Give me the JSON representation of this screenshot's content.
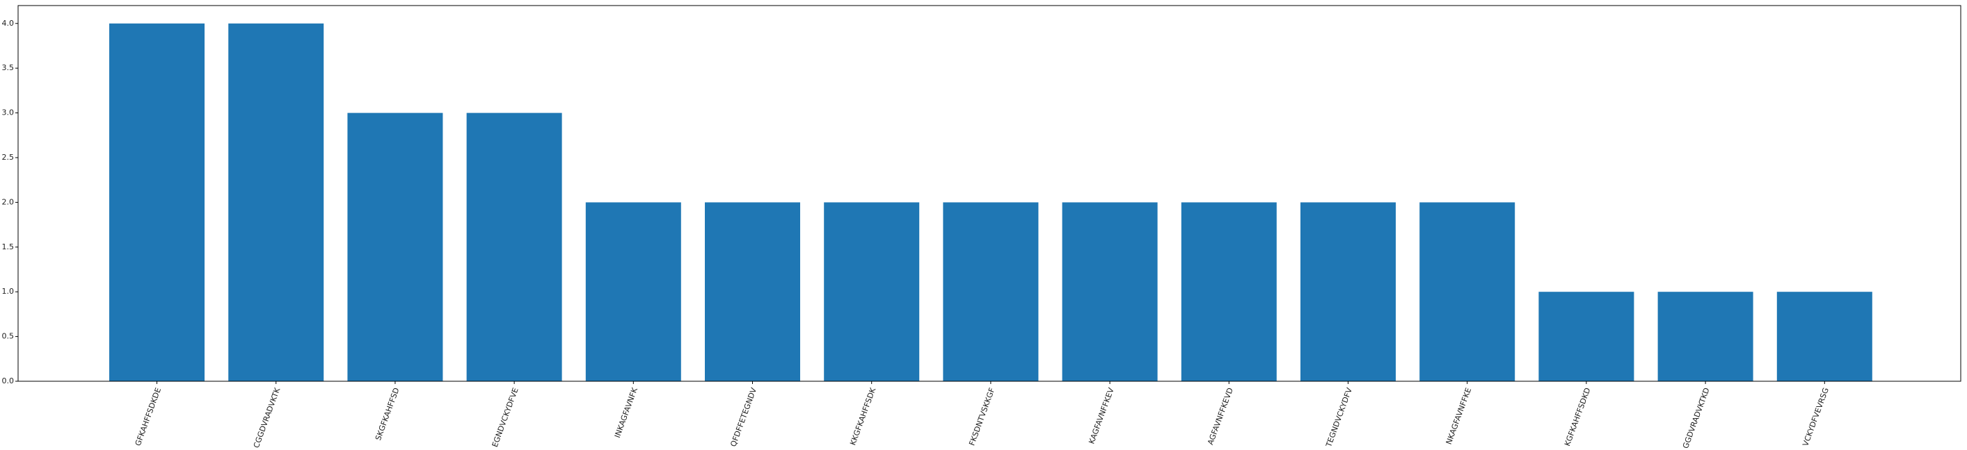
{
  "chart_data": {
    "type": "bar",
    "categories": [
      "GFKAHFFSDKDE",
      "CGGDVRADVKTK",
      "SKGFKAHFFSD",
      "EGNDVCKYDFVE",
      "INKAGFAVNFK",
      "QFDFFETEGNDV",
      "KKGFKAHFFSDK",
      "FKSDNTVSKKGF",
      "KAGFAVNFFKEV",
      "AGFAVNFFKEVD",
      "TEGNDVCKYDFV",
      "NKAGFAVNFFKE",
      "KGFKAHFFSDKD",
      "GGDVRADVKTKD",
      "VCKYDFVEVRSG"
    ],
    "values": [
      4,
      4,
      3,
      3,
      2,
      2,
      2,
      2,
      2,
      2,
      2,
      2,
      1,
      1,
      1
    ],
    "title": "",
    "xlabel": "",
    "ylabel": "",
    "ylim": [
      0,
      4.2
    ],
    "yticks": [
      "0.0",
      "0.5",
      "1.0",
      "1.5",
      "2.0",
      "2.5",
      "3.0",
      "3.5",
      "4.0"
    ],
    "bar_color": "#1f77b4",
    "grid": false
  }
}
